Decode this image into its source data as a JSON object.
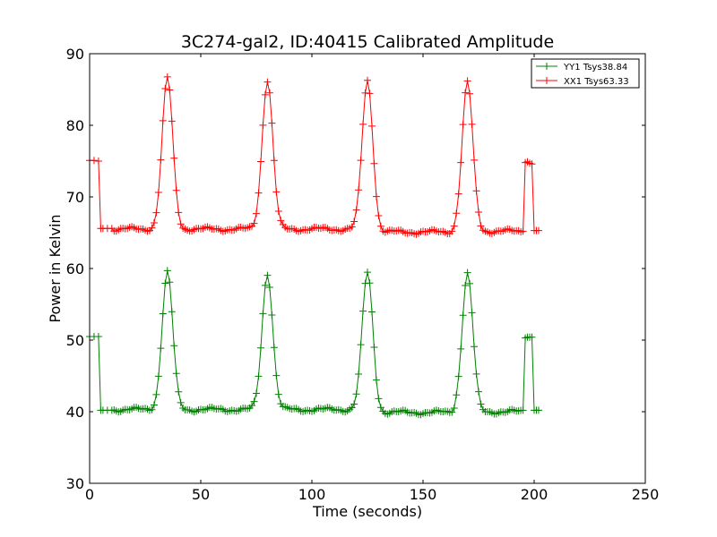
{
  "chart_data": {
    "type": "line",
    "title": "3C274-gal2, ID:40415 Calibrated Amplitude",
    "xlabel": "Time (seconds)",
    "ylabel": "Power in Kelvin",
    "xlim": [
      0,
      250
    ],
    "ylim": [
      30,
      90
    ],
    "xticks": [
      0,
      50,
      100,
      150,
      200,
      250
    ],
    "yticks": [
      30,
      40,
      50,
      60,
      70,
      80,
      90
    ],
    "grid": false,
    "legend_position": "top-right",
    "marker": "+",
    "series": [
      {
        "name": "YY1 Tsys38.84",
        "color": "#008000",
        "baseline": 40.3,
        "cal_level": 50.5,
        "peaks": [
          {
            "center": 35,
            "height": 59.5
          },
          {
            "center": 80,
            "height": 59.3
          },
          {
            "center": 125,
            "height": 59.4
          },
          {
            "center": 170,
            "height": 59.3
          }
        ],
        "x": [
          0,
          2,
          4,
          5,
          6,
          8,
          10,
          195,
          196,
          197,
          198,
          199,
          200,
          201,
          202
        ],
        "y": [
          50.5,
          50.5,
          50.5,
          40.2,
          40.2,
          40.2,
          40.2,
          40.2,
          50.3,
          50.4,
          50.4,
          50.4,
          40.2,
          40.2,
          40.2
        ]
      },
      {
        "name": "XX1 Tsys63.33",
        "color": "#ff0000",
        "baseline": 65.5,
        "cal_level": 75.0,
        "peaks": [
          {
            "center": 35,
            "height": 86.6
          },
          {
            "center": 80,
            "height": 86.3
          },
          {
            "center": 125,
            "height": 86.2
          },
          {
            "center": 170,
            "height": 86.0
          }
        ],
        "x": [
          0,
          2,
          4,
          5,
          6,
          8,
          10,
          195,
          196,
          197,
          198,
          199,
          200,
          201,
          202
        ],
        "y": [
          75.1,
          75.1,
          75.0,
          65.6,
          65.6,
          65.6,
          65.6,
          65.2,
          74.8,
          74.9,
          74.7,
          74.6,
          65.3,
          65.3,
          65.3
        ]
      }
    ]
  }
}
